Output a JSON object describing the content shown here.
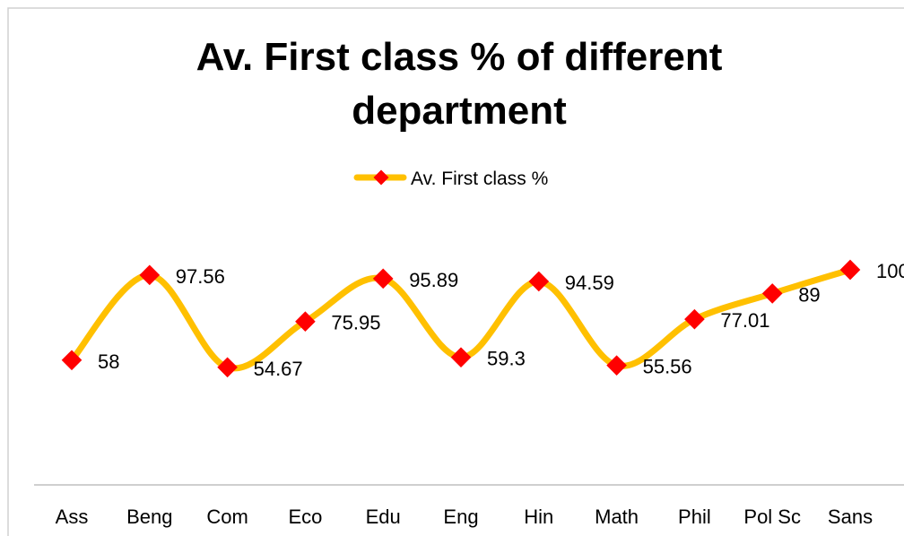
{
  "chart_data": {
    "type": "line",
    "title": "Av. First class % of different department",
    "categories": [
      "Ass",
      "Beng",
      "Com",
      "Eco",
      "Edu",
      "Eng",
      "Hin",
      "Math",
      "Phil",
      "Pol Sc",
      "Sans"
    ],
    "series": [
      {
        "name": "Av. First class %",
        "color": "#FFC000",
        "marker_color": "#FF0000",
        "values": [
          58,
          97.56,
          54.67,
          75.95,
          95.89,
          59.3,
          94.59,
          55.56,
          77.01,
          89,
          100
        ]
      }
    ],
    "ylim": [
      0,
      120
    ],
    "smooth": true,
    "legend": "top"
  }
}
